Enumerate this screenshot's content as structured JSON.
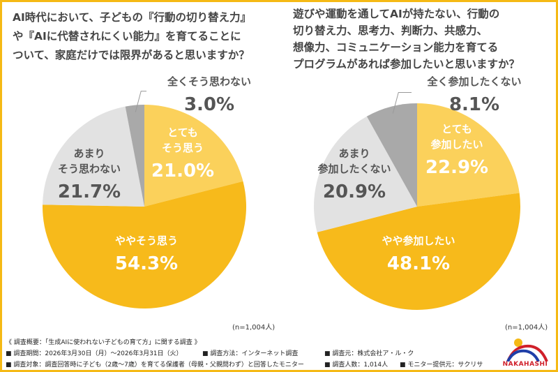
{
  "chart_data": [
    {
      "type": "pie",
      "title": [
        "AI時代において、子どもの『行動の切り替え力』",
        "や『AIに代替されにくい能力』を育てることに",
        "ついて、家庭だけでは限界があると思いますか？"
      ],
      "note": "(n=1,004人)",
      "slices": [
        {
          "label": [
            "とても",
            "そう思う"
          ],
          "value": 21.0,
          "color": "#FBD15B",
          "text_color": "#ffffff"
        },
        {
          "label": [
            "ややそう思う"
          ],
          "value": 54.3,
          "color": "#F7BA1B",
          "text_color": "#ffffff"
        },
        {
          "label": [
            "あまり",
            "そう思わない"
          ],
          "value": 21.7,
          "color": "#E2E2E2",
          "text_color": "#555555"
        },
        {
          "label": [
            "全くそう思わない"
          ],
          "value": 3.0,
          "color": "#A9A9A9",
          "text_color": "#555555"
        }
      ]
    },
    {
      "type": "pie",
      "title": [
        "遊びや運動を通してAIが持たない、行動の",
        "切り替え力、思考力、判断力、共感力、",
        "想像力、コミュニケーション能力を育てる",
        "プログラムがあれば参加したいと思いますか？"
      ],
      "note": "(n=1,004人)",
      "slices": [
        {
          "label": [
            "とても",
            "参加したい"
          ],
          "value": 22.9,
          "color": "#FBD15B",
          "text_color": "#ffffff"
        },
        {
          "label": [
            "やや参加したい"
          ],
          "value": 48.1,
          "color": "#F7BA1B",
          "text_color": "#ffffff"
        },
        {
          "label": [
            "あまり",
            "参加したくない"
          ],
          "value": 20.9,
          "color": "#E2E2E2",
          "text_color": "#555555"
        },
        {
          "label": [
            "全く参加したくない"
          ],
          "value": 8.1,
          "color": "#A9A9A9",
          "text_color": "#555555"
        }
      ]
    }
  ],
  "footer": {
    "summary": "《 調査概要：「生成AIに使われない子どもの育て方」に関する調査 》",
    "period": "■ 調査期間：2026年3月30日（月）～2026年3月31日（火）",
    "method": "■ 調査方法：インターネット調査",
    "source": "■ 調査元：株式会社ア・ル・ク",
    "target": "■ 調査対象：調査回答時に子ども（2歳～7歳）を育てる保護者（母親・父親問わず）と回答したモニター",
    "count": "■ 調査人数：1,014人",
    "provider": "■ モニター提供元：サクリサ"
  },
  "logo": {
    "text": "NAKAHASHI"
  }
}
